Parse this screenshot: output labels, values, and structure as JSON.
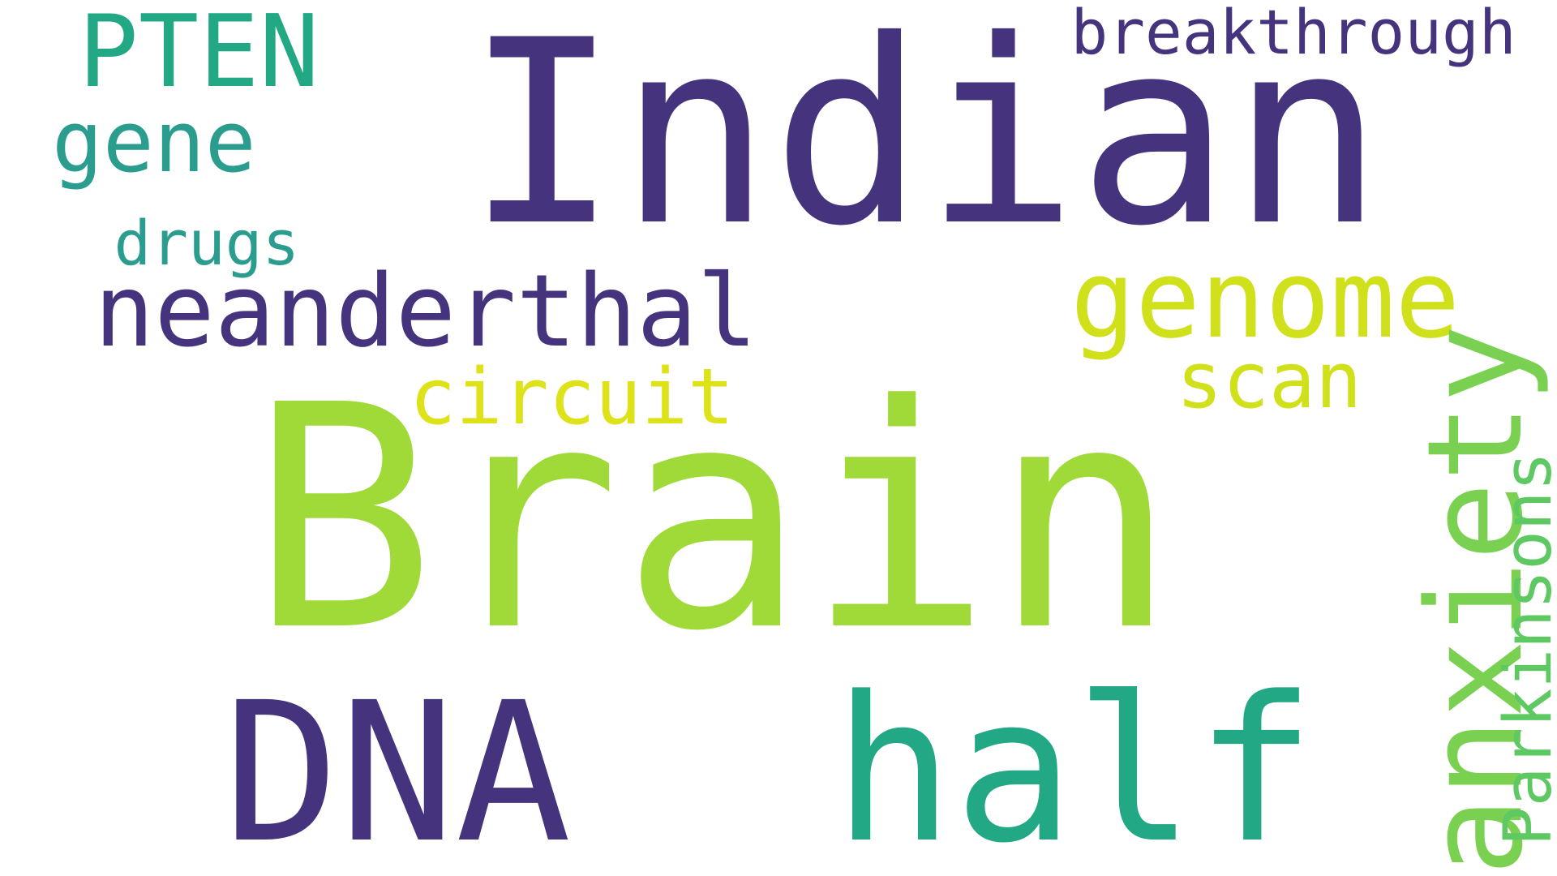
{
  "words": [
    {
      "text": "Indian",
      "color": "#46337e",
      "orientation": "horizontal"
    },
    {
      "text": "Brain",
      "color": "#a0da39",
      "orientation": "horizontal"
    },
    {
      "text": "DNA",
      "color": "#46337e",
      "orientation": "horizontal"
    },
    {
      "text": "half",
      "color": "#22a884",
      "orientation": "horizontal"
    },
    {
      "text": "neanderthal",
      "color": "#46337e",
      "orientation": "horizontal"
    },
    {
      "text": "genome",
      "color": "#d0e11c",
      "orientation": "horizontal"
    },
    {
      "text": "anxiety",
      "color": "#7ad151",
      "orientation": "vertical"
    },
    {
      "text": "PTEN",
      "color": "#22a884",
      "orientation": "horizontal"
    },
    {
      "text": "gene",
      "color": "#2a9d8f",
      "orientation": "horizontal"
    },
    {
      "text": "circuit",
      "color": "#dde318",
      "orientation": "horizontal"
    },
    {
      "text": "scan",
      "color": "#d0e11c",
      "orientation": "horizontal"
    },
    {
      "text": "breakthrough",
      "color": "#46337e",
      "orientation": "horizontal"
    },
    {
      "text": "drugs",
      "color": "#2a9d8f",
      "orientation": "horizontal"
    },
    {
      "text": "Parkinsons",
      "color": "#5ec962",
      "orientation": "vertical"
    }
  ]
}
